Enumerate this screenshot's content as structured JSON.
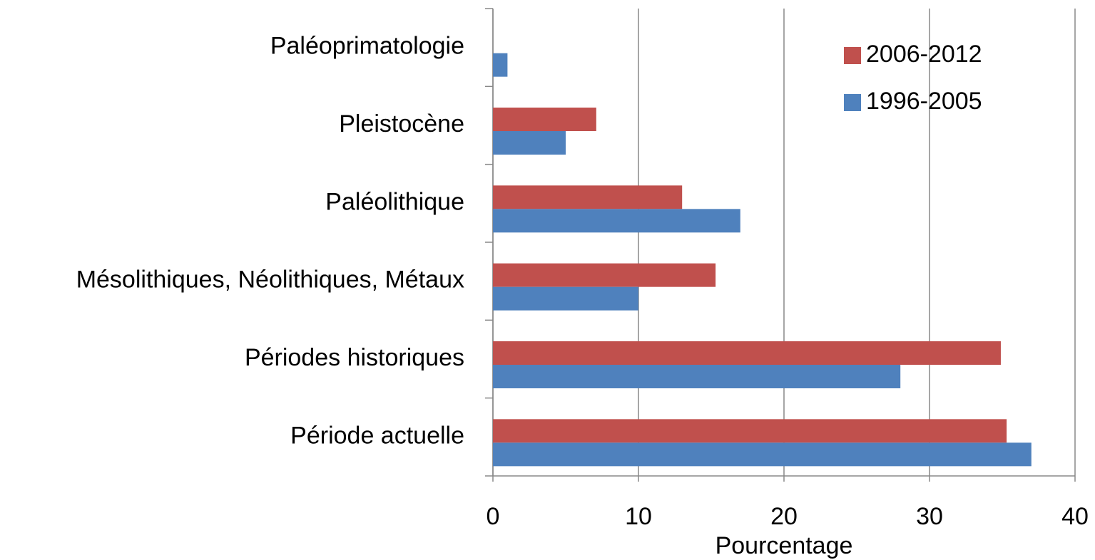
{
  "chart_data": {
    "type": "barh",
    "categories": [
      "Paléoprimatologie",
      "Pleistocène",
      "Paléolithique",
      "Mésolithiques, Néolithiques, Métaux",
      "Périodes historiques",
      "Période actuelle"
    ],
    "series": [
      {
        "name": "2006-2012",
        "color": "#c0504d",
        "values": [
          null,
          7.1,
          13.0,
          15.3,
          34.9,
          35.3
        ]
      },
      {
        "name": "1996-2005",
        "color": "#4f81bd",
        "values": [
          1.0,
          5.0,
          17.0,
          10.0,
          28.0,
          37.0
        ]
      }
    ],
    "xlabel": "Pourcentage",
    "xlim": [
      0,
      40
    ],
    "xticks": [
      0,
      10,
      20,
      30,
      40
    ],
    "grid": true,
    "legend": "upper right"
  }
}
